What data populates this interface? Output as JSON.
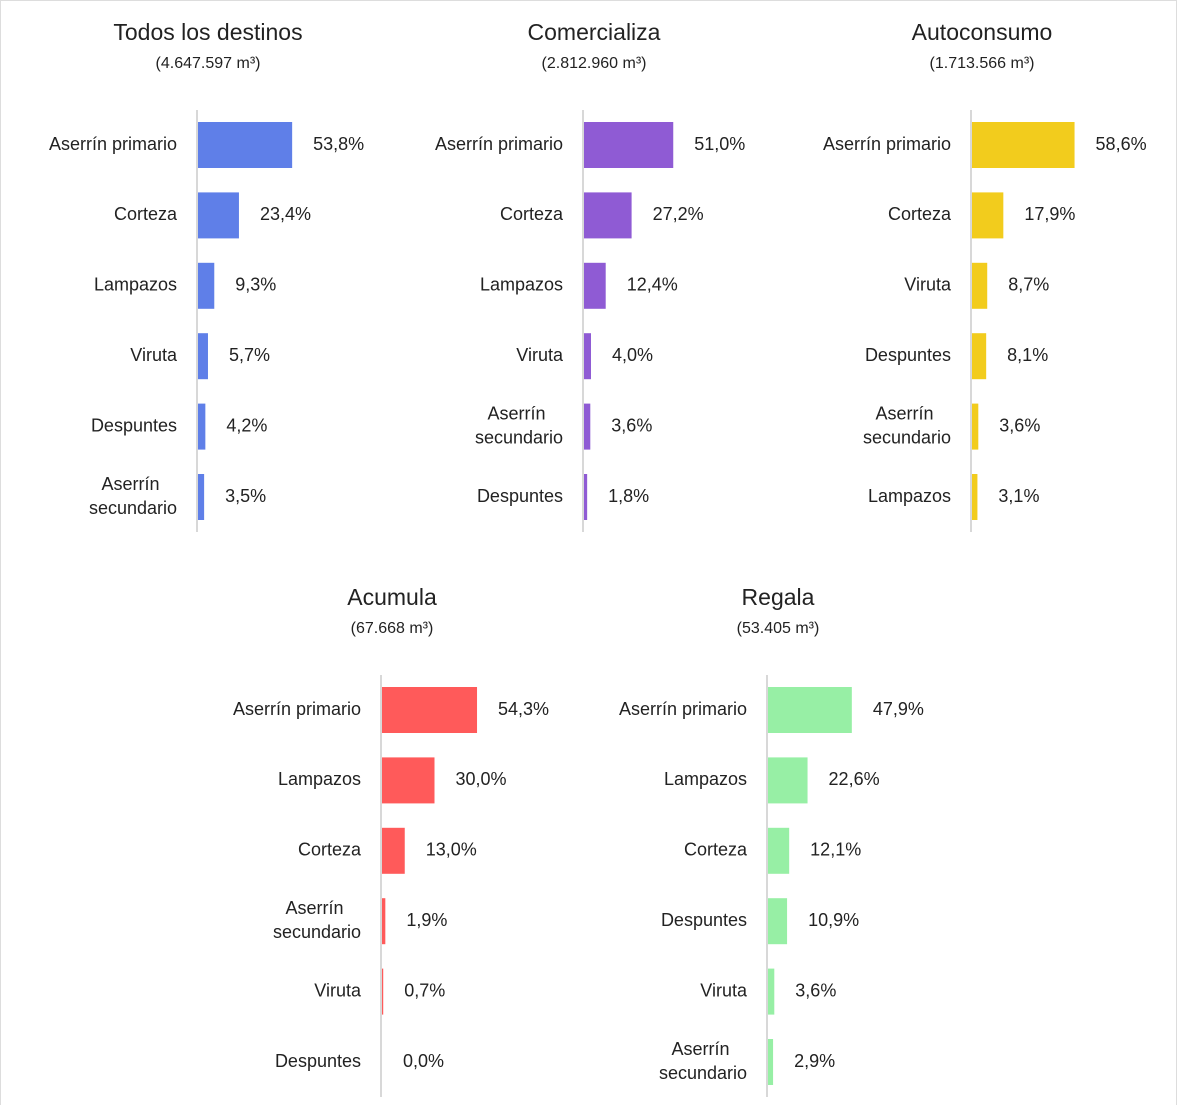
{
  "chart_data": [
    {
      "type": "bar",
      "title": "Todos los destinos",
      "subtitle": "(4.647.597 m³)",
      "color": "#5f7fe8",
      "categories": [
        "Aserrín primario",
        "Corteza",
        "Lampazos",
        "Viruta",
        "Despuntes",
        "Aserrín secundario"
      ],
      "values": [
        53.8,
        23.4,
        9.3,
        5.7,
        4.2,
        3.5
      ],
      "value_labels": [
        "53,8%",
        "23,4%",
        "9,3%",
        "5,7%",
        "4,2%",
        "3,5%"
      ]
    },
    {
      "type": "bar",
      "title": "Comercializa",
      "subtitle": "(2.812.960 m³)",
      "color": "#8f5bd4",
      "categories": [
        "Aserrín primario",
        "Corteza",
        "Lampazos",
        "Viruta",
        "Aserrín secundario",
        "Despuntes"
      ],
      "values": [
        51.0,
        27.2,
        12.4,
        4.0,
        3.6,
        1.8
      ],
      "value_labels": [
        "51,0%",
        "27,2%",
        "12,4%",
        "4,0%",
        "3,6%",
        "1,8%"
      ]
    },
    {
      "type": "bar",
      "title": "Autoconsumo",
      "subtitle": "(1.713.566 m³)",
      "color": "#f2cc1d",
      "categories": [
        "Aserrín primario",
        "Corteza",
        "Viruta",
        "Despuntes",
        "Aserrín secundario",
        "Lampazos"
      ],
      "values": [
        58.6,
        17.9,
        8.7,
        8.1,
        3.6,
        3.1
      ],
      "value_labels": [
        "58,6%",
        "17,9%",
        "8,7%",
        "8,1%",
        "3,6%",
        "3,1%"
      ]
    },
    {
      "type": "bar",
      "title": "Acumula",
      "subtitle": "(67.668 m³)",
      "color": "#ff5a5a",
      "categories": [
        "Aserrín primario",
        "Lampazos",
        "Corteza",
        "Aserrín secundario",
        "Viruta",
        "Despuntes"
      ],
      "values": [
        54.3,
        30.0,
        13.0,
        1.9,
        0.7,
        0.0
      ],
      "value_labels": [
        "54,3%",
        "30,0%",
        "13,0%",
        "1,9%",
        "0,7%",
        "0,0%"
      ]
    },
    {
      "type": "bar",
      "title": "Regala",
      "subtitle": "(53.405 m³)",
      "color": "#97efa5",
      "categories": [
        "Aserrín primario",
        "Lampazos",
        "Corteza",
        "Despuntes",
        "Viruta",
        "Aserrín secundario"
      ],
      "values": [
        47.9,
        22.6,
        12.1,
        10.9,
        3.6,
        2.9
      ],
      "value_labels": [
        "47,9%",
        "22,6%",
        "12,1%",
        "10,9%",
        "3,6%",
        "2,9%"
      ]
    }
  ]
}
